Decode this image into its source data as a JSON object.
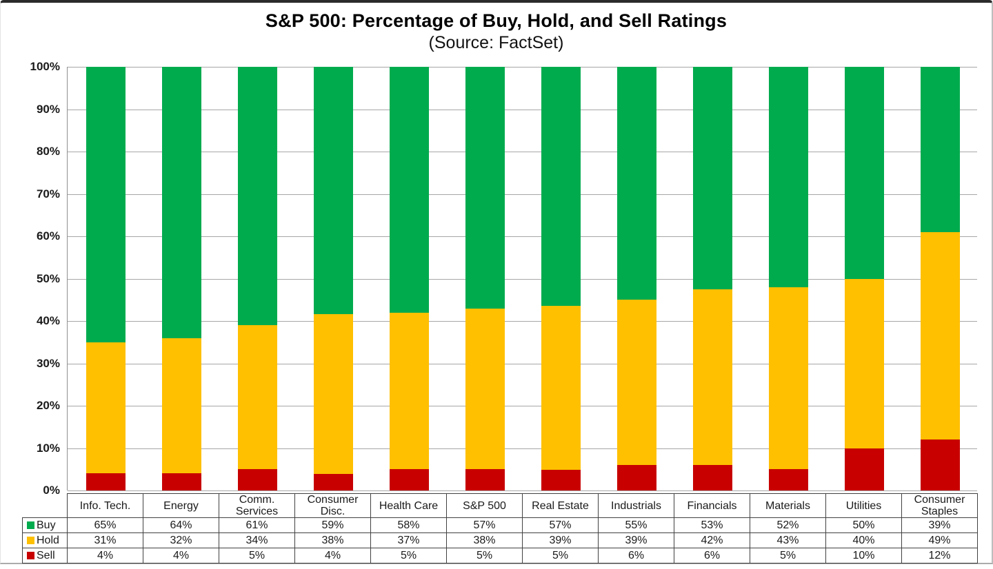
{
  "chart_data": {
    "type": "bar",
    "stacked": true,
    "title": "S&P 500: Percentage of Buy, Hold, and Sell Ratings",
    "subtitle": "(Source: FactSet)",
    "categories": [
      "Info. Tech.",
      "Energy",
      "Comm. Services",
      "Consumer Disc.",
      "Health Care",
      "S&P 500",
      "Real Estate",
      "Industrials",
      "Financials",
      "Materials",
      "Utilities",
      "Consumer Staples"
    ],
    "series": [
      {
        "name": "Buy",
        "color": "#00AB4E",
        "values": [
          65,
          64,
          61,
          59,
          58,
          57,
          57,
          55,
          53,
          52,
          50,
          39
        ]
      },
      {
        "name": "Hold",
        "color": "#FFC000",
        "values": [
          31,
          32,
          34,
          38,
          37,
          38,
          39,
          39,
          42,
          43,
          40,
          49
        ]
      },
      {
        "name": "Sell",
        "color": "#C80000",
        "values": [
          4,
          4,
          5,
          4,
          5,
          5,
          5,
          6,
          6,
          5,
          10,
          12
        ]
      }
    ],
    "value_suffix": "%",
    "y_ticks": [
      "100%",
      "90%",
      "80%",
      "70%",
      "60%",
      "50%",
      "40%",
      "30%",
      "20%",
      "10%",
      "0%"
    ],
    "ylim": [
      0,
      100
    ],
    "grid": true,
    "gridline_color": "#A6A6A6",
    "legend_position": "table-left",
    "legend_labels": [
      "Buy",
      "Hold",
      "Sell"
    ]
  }
}
